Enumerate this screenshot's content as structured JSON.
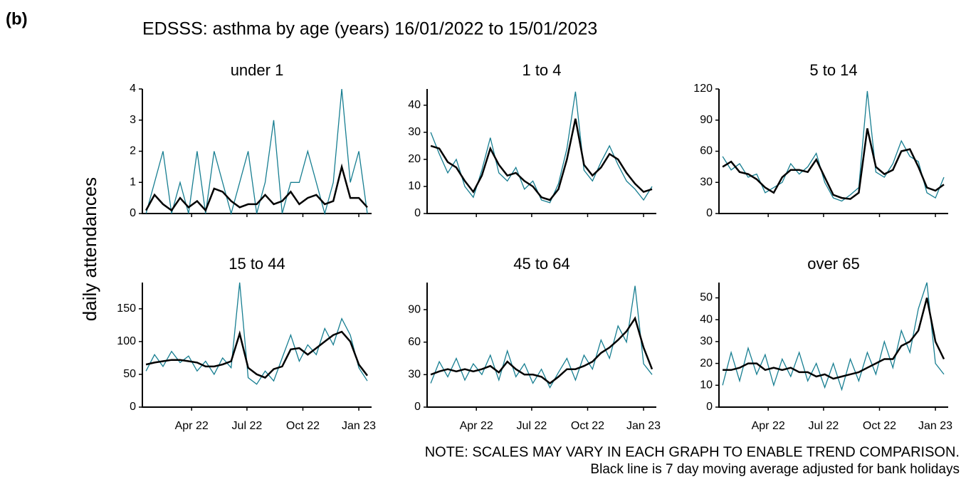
{
  "label": "(b)",
  "title": "EDSSS: asthma by age (years) 16/01/2022 to 15/01/2023",
  "y_label": "daily attendances",
  "notes": [
    "NOTE: SCALES MAY VARY IN EACH GRAPH TO ENABLE TREND COMPARISON.",
    "Black line is 7 day moving average adjusted for bank holidays"
  ],
  "chart_data": [
    {
      "type": "line",
      "title": "under 1",
      "x": [
        "2022-01-16",
        "2022-01-30",
        "2022-02-13",
        "2022-02-27",
        "2022-03-13",
        "2022-03-27",
        "2022-04-10",
        "2022-04-24",
        "2022-05-08",
        "2022-05-22",
        "2022-06-05",
        "2022-06-19",
        "2022-07-03",
        "2022-07-17",
        "2022-07-31",
        "2022-08-14",
        "2022-08-28",
        "2022-09-11",
        "2022-09-25",
        "2022-10-09",
        "2022-10-23",
        "2022-11-06",
        "2022-11-20",
        "2022-12-04",
        "2022-12-18",
        "2023-01-01",
        "2023-01-15"
      ],
      "series": [
        {
          "color": "#177e91",
          "values": [
            0,
            1,
            2,
            0,
            1,
            0,
            2,
            0,
            2,
            1,
            0,
            1,
            2,
            0,
            1,
            3,
            0,
            1,
            1,
            2,
            1,
            0,
            1,
            4,
            1,
            2,
            0
          ]
        },
        {
          "color": "#000000",
          "values": [
            0.1,
            0.6,
            0.3,
            0.1,
            0.5,
            0.2,
            0.4,
            0.1,
            0.8,
            0.7,
            0.4,
            0.2,
            0.3,
            0.3,
            0.6,
            0.3,
            0.4,
            0.7,
            0.3,
            0.5,
            0.6,
            0.3,
            0.4,
            1.5,
            0.5,
            0.5,
            0.2
          ]
        }
      ],
      "xlim": [
        "2022-01-10",
        "2023-01-22"
      ],
      "xticks": [
        {
          "value": "2022-04-01",
          "label": "Apr 22"
        },
        {
          "value": "2022-07-01",
          "label": "Jul 22"
        },
        {
          "value": "2022-10-01",
          "label": "Oct 22"
        },
        {
          "value": "2023-01-01",
          "label": "Jan 23"
        }
      ],
      "ylim": [
        0,
        4
      ],
      "yticks": [
        0,
        1,
        2,
        3,
        4
      ]
    },
    {
      "type": "line",
      "title": "1 to 4",
      "x": [
        "2022-01-16",
        "2022-01-30",
        "2022-02-13",
        "2022-02-27",
        "2022-03-13",
        "2022-03-27",
        "2022-04-10",
        "2022-04-24",
        "2022-05-08",
        "2022-05-22",
        "2022-06-05",
        "2022-06-19",
        "2022-07-03",
        "2022-07-17",
        "2022-07-31",
        "2022-08-14",
        "2022-08-28",
        "2022-09-11",
        "2022-09-25",
        "2022-10-09",
        "2022-10-23",
        "2022-11-06",
        "2022-11-20",
        "2022-12-04",
        "2022-12-18",
        "2023-01-01",
        "2023-01-15"
      ],
      "series": [
        {
          "color": "#177e91",
          "values": [
            30,
            22,
            15,
            20,
            10,
            6,
            16,
            28,
            15,
            12,
            17,
            9,
            12,
            5,
            4,
            11,
            24,
            45,
            16,
            12,
            19,
            25,
            18,
            12,
            9,
            5,
            10
          ]
        },
        {
          "color": "#000000",
          "values": [
            25,
            24,
            19,
            17,
            12,
            8,
            14,
            24,
            18,
            14,
            15,
            12,
            10,
            6,
            5,
            9,
            20,
            35,
            18,
            14,
            17,
            22,
            20,
            15,
            11,
            8,
            9
          ]
        }
      ],
      "xlim": [
        "2022-01-10",
        "2023-01-22"
      ],
      "xticks": [
        {
          "value": "2022-04-01",
          "label": "Apr 22"
        },
        {
          "value": "2022-07-01",
          "label": "Jul 22"
        },
        {
          "value": "2022-10-01",
          "label": "Oct 22"
        },
        {
          "value": "2023-01-01",
          "label": "Jan 23"
        }
      ],
      "ylim": [
        0,
        46
      ],
      "yticks": [
        0,
        10,
        20,
        30,
        40
      ]
    },
    {
      "type": "line",
      "title": "5 to 14",
      "x": [
        "2022-01-16",
        "2022-01-30",
        "2022-02-13",
        "2022-02-27",
        "2022-03-13",
        "2022-03-27",
        "2022-04-10",
        "2022-04-24",
        "2022-05-08",
        "2022-05-22",
        "2022-06-05",
        "2022-06-19",
        "2022-07-03",
        "2022-07-17",
        "2022-07-31",
        "2022-08-14",
        "2022-08-28",
        "2022-09-11",
        "2022-09-25",
        "2022-10-09",
        "2022-10-23",
        "2022-11-06",
        "2022-11-20",
        "2022-12-04",
        "2022-12-18",
        "2023-01-01",
        "2023-01-15"
      ],
      "series": [
        {
          "color": "#177e91",
          "values": [
            55,
            42,
            48,
            35,
            38,
            20,
            25,
            30,
            48,
            38,
            45,
            58,
            30,
            15,
            12,
            18,
            25,
            118,
            40,
            35,
            48,
            70,
            55,
            50,
            20,
            15,
            35
          ]
        },
        {
          "color": "#000000",
          "values": [
            45,
            50,
            40,
            38,
            33,
            25,
            20,
            35,
            42,
            42,
            40,
            52,
            35,
            18,
            15,
            14,
            20,
            82,
            45,
            38,
            42,
            60,
            62,
            45,
            25,
            22,
            28
          ]
        }
      ],
      "xlim": [
        "2022-01-10",
        "2023-01-22"
      ],
      "xticks": [
        {
          "value": "2022-04-01",
          "label": "Apr 22"
        },
        {
          "value": "2022-07-01",
          "label": "Jul 22"
        },
        {
          "value": "2022-10-01",
          "label": "Oct 22"
        },
        {
          "value": "2023-01-01",
          "label": "Jan 23"
        }
      ],
      "ylim": [
        0,
        120
      ],
      "yticks": [
        0,
        30,
        60,
        90,
        120
      ]
    },
    {
      "type": "line",
      "title": "15 to 44",
      "x": [
        "2022-01-16",
        "2022-01-30",
        "2022-02-13",
        "2022-02-27",
        "2022-03-13",
        "2022-03-27",
        "2022-04-10",
        "2022-04-24",
        "2022-05-08",
        "2022-05-22",
        "2022-06-05",
        "2022-06-19",
        "2022-07-03",
        "2022-07-17",
        "2022-07-31",
        "2022-08-14",
        "2022-08-28",
        "2022-09-11",
        "2022-09-25",
        "2022-10-09",
        "2022-10-23",
        "2022-11-06",
        "2022-11-20",
        "2022-12-04",
        "2022-12-18",
        "2023-01-01",
        "2023-01-15"
      ],
      "series": [
        {
          "color": "#177e91",
          "values": [
            55,
            80,
            62,
            85,
            68,
            78,
            55,
            70,
            50,
            75,
            60,
            190,
            45,
            35,
            55,
            40,
            75,
            110,
            70,
            95,
            80,
            120,
            95,
            135,
            110,
            60,
            40
          ]
        },
        {
          "color": "#000000",
          "values": [
            65,
            68,
            70,
            72,
            72,
            70,
            68,
            62,
            62,
            65,
            70,
            112,
            60,
            50,
            45,
            58,
            62,
            88,
            90,
            80,
            90,
            100,
            110,
            115,
            100,
            65,
            48
          ]
        }
      ],
      "xlim": [
        "2022-01-10",
        "2023-01-22"
      ],
      "xticks": [
        {
          "value": "2022-04-01",
          "label": "Apr 22"
        },
        {
          "value": "2022-07-01",
          "label": "Jul 22"
        },
        {
          "value": "2022-10-01",
          "label": "Oct 22"
        },
        {
          "value": "2023-01-01",
          "label": "Jan 23"
        }
      ],
      "ylim": [
        0,
        190
      ],
      "yticks": [
        0,
        50,
        100,
        150
      ]
    },
    {
      "type": "line",
      "title": "45 to 64",
      "x": [
        "2022-01-16",
        "2022-01-30",
        "2022-02-13",
        "2022-02-27",
        "2022-03-13",
        "2022-03-27",
        "2022-04-10",
        "2022-04-24",
        "2022-05-08",
        "2022-05-22",
        "2022-06-05",
        "2022-06-19",
        "2022-07-03",
        "2022-07-17",
        "2022-07-31",
        "2022-08-14",
        "2022-08-28",
        "2022-09-11",
        "2022-09-25",
        "2022-10-09",
        "2022-10-23",
        "2022-11-06",
        "2022-11-20",
        "2022-12-04",
        "2022-12-18",
        "2023-01-01",
        "2023-01-15"
      ],
      "series": [
        {
          "color": "#177e91",
          "values": [
            22,
            42,
            28,
            45,
            25,
            40,
            30,
            48,
            25,
            52,
            28,
            40,
            22,
            35,
            18,
            32,
            45,
            25,
            48,
            35,
            62,
            45,
            75,
            60,
            112,
            40,
            30
          ]
        },
        {
          "color": "#000000",
          "values": [
            30,
            33,
            35,
            33,
            35,
            33,
            35,
            38,
            32,
            42,
            35,
            30,
            30,
            28,
            22,
            28,
            35,
            35,
            38,
            42,
            50,
            55,
            62,
            70,
            82,
            55,
            35
          ]
        }
      ],
      "xlim": [
        "2022-01-10",
        "2023-01-22"
      ],
      "xticks": [
        {
          "value": "2022-04-01",
          "label": "Apr 22"
        },
        {
          "value": "2022-07-01",
          "label": "Jul 22"
        },
        {
          "value": "2022-10-01",
          "label": "Oct 22"
        },
        {
          "value": "2023-01-01",
          "label": "Jan 23"
        }
      ],
      "ylim": [
        0,
        115
      ],
      "yticks": [
        0,
        30,
        60,
        90
      ]
    },
    {
      "type": "line",
      "title": "over 65",
      "x": [
        "2022-01-16",
        "2022-01-30",
        "2022-02-13",
        "2022-02-27",
        "2022-03-13",
        "2022-03-27",
        "2022-04-10",
        "2022-04-24",
        "2022-05-08",
        "2022-05-22",
        "2022-06-05",
        "2022-06-19",
        "2022-07-03",
        "2022-07-17",
        "2022-07-31",
        "2022-08-14",
        "2022-08-28",
        "2022-09-11",
        "2022-09-25",
        "2022-10-09",
        "2022-10-23",
        "2022-11-06",
        "2022-11-20",
        "2022-12-04",
        "2022-12-18",
        "2023-01-01",
        "2023-01-15"
      ],
      "series": [
        {
          "color": "#177e91",
          "values": [
            10,
            25,
            12,
            27,
            15,
            24,
            10,
            22,
            14,
            25,
            12,
            20,
            9,
            20,
            8,
            22,
            12,
            25,
            15,
            30,
            18,
            35,
            25,
            45,
            57,
            20,
            15
          ]
        },
        {
          "color": "#000000",
          "values": [
            17,
            17,
            18,
            20,
            20,
            17,
            18,
            17,
            18,
            16,
            16,
            14,
            15,
            13,
            14,
            15,
            16,
            18,
            20,
            22,
            22,
            28,
            30,
            35,
            50,
            30,
            22
          ]
        }
      ],
      "xlim": [
        "2022-01-10",
        "2023-01-22"
      ],
      "xticks": [
        {
          "value": "2022-04-01",
          "label": "Apr 22"
        },
        {
          "value": "2022-07-01",
          "label": "Jul 22"
        },
        {
          "value": "2022-10-01",
          "label": "Oct 22"
        },
        {
          "value": "2023-01-01",
          "label": "Jan 23"
        }
      ],
      "ylim": [
        0,
        57
      ],
      "yticks": [
        0,
        10,
        20,
        30,
        40,
        50
      ]
    }
  ]
}
